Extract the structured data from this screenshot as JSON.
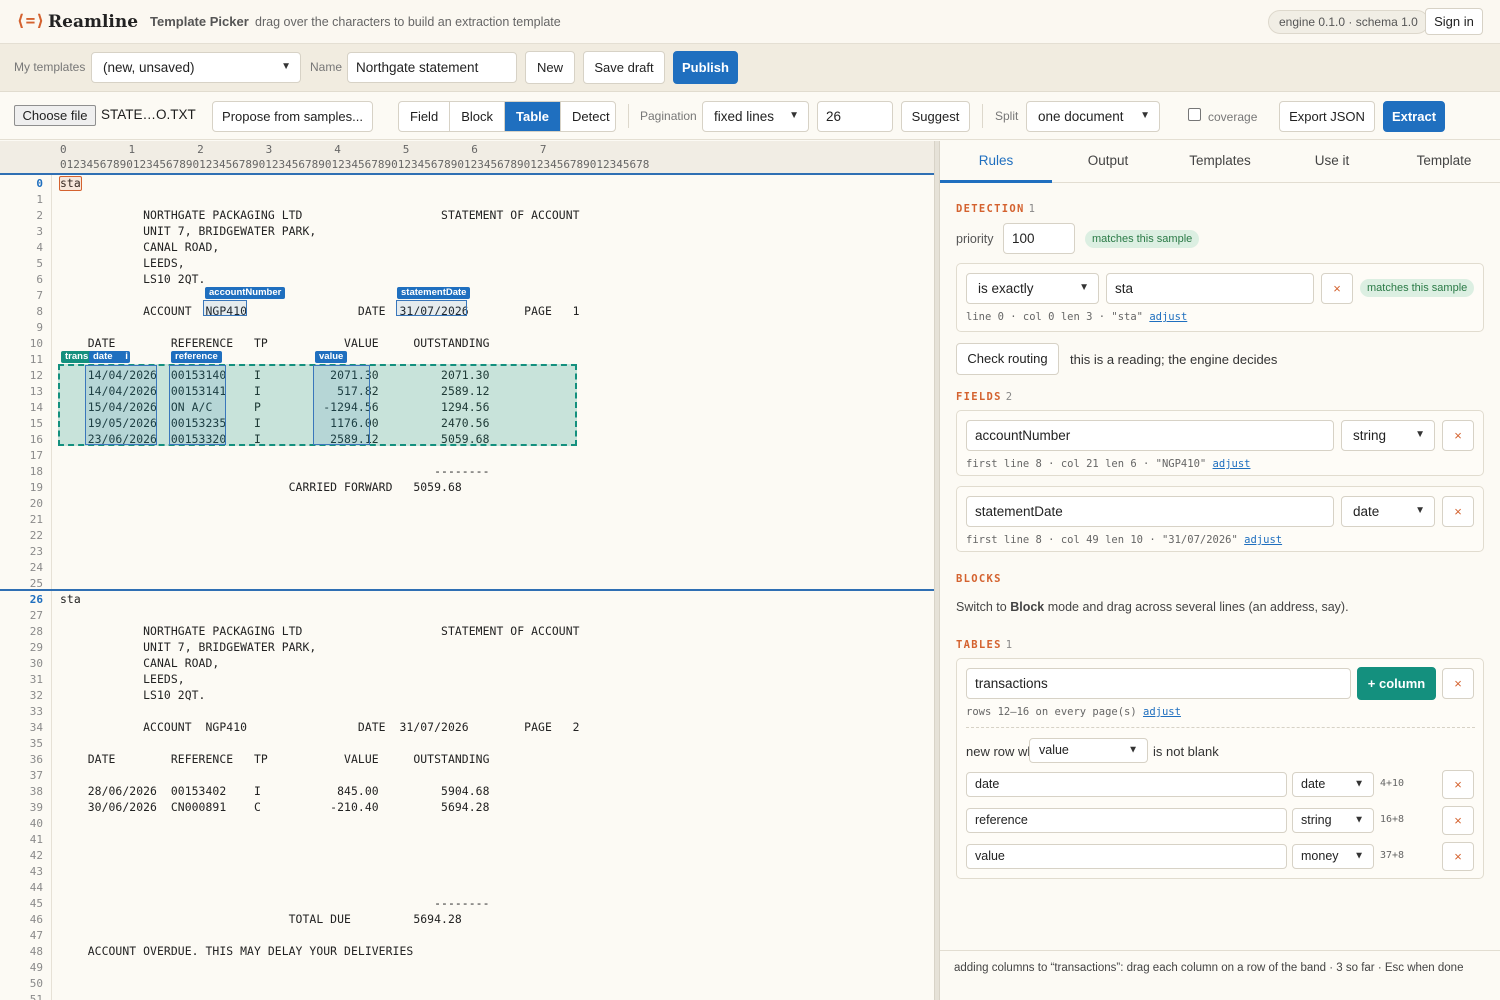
{
  "app": {
    "logo_glyph": "⟨=⟩",
    "brand": "Reamline",
    "title": "Template Picker",
    "subtitle": "drag over the characters to build an extraction template",
    "engine": "engine 0.1.0 · schema 1.0",
    "sign_in": "Sign in",
    "accent": "#1f6fbf",
    "brand_color": "#d4622f",
    "teal": "#14907e"
  },
  "templates_bar": {
    "my_templates_label": "My templates",
    "my_templates_value": "(new, unsaved)",
    "name_label": "Name",
    "name_value": "Northgate statement",
    "new_label": "New",
    "save_draft_label": "Save draft",
    "publish_label": "Publish"
  },
  "toolbar": {
    "choose_file": "Choose file",
    "file_name": "STATE…O.TXT",
    "propose": "Propose from samples...",
    "modes": [
      "Field",
      "Block",
      "Table",
      "Detect"
    ],
    "active_mode": "Table",
    "pagination_label": "Pagination",
    "pagination_value": "fixed lines",
    "pagination_lines": "26",
    "suggest": "Suggest",
    "split_label": "Split",
    "split_value": "one document",
    "coverage_label": "coverage",
    "coverage_checked": false,
    "export": "Export JSON",
    "extract": "Extract"
  },
  "ruler": {
    "tens": [
      "0",
      "1",
      "2",
      "3",
      "4",
      "5",
      "6",
      "7"
    ],
    "digits": "01234567890123456789012345678901234567890123456789012345678901234567890123456789012345678"
  },
  "document": {
    "lines": [
      "sta",
      "",
      "            NORTHGATE PACKAGING LTD                    STATEMENT OF ACCOUNT",
      "            UNIT 7, BRIDGEWATER PARK,",
      "            CANAL ROAD,",
      "            LEEDS,",
      "            LS10 2QT.",
      "",
      "            ACCOUNT  NGP410                DATE  31/07/2026        PAGE   1",
      "",
      "    DATE        REFERENCE   TP           VALUE     OUTSTANDING",
      "",
      "    14/04/2026  00153140    I          2071.30         2071.30",
      "    14/04/2026  00153141    I           517.82         2589.12",
      "    15/04/2026  ON A/C      P         -1294.56         1294.56",
      "    19/05/2026  00153235    I          1176.00         2470.56",
      "    23/06/2026  00153320    I          2589.12         5059.68",
      "",
      "                                                      --------",
      "                                 CARRIED FORWARD   5059.68",
      "",
      "",
      "",
      "",
      "",
      "",
      "sta",
      "",
      "            NORTHGATE PACKAGING LTD                    STATEMENT OF ACCOUNT",
      "            UNIT 7, BRIDGEWATER PARK,",
      "            CANAL ROAD,",
      "            LEEDS,",
      "            LS10 2QT.",
      "",
      "            ACCOUNT  NGP410                DATE  31/07/2026        PAGE   2",
      "",
      "    DATE        REFERENCE   TP           VALUE     OUTSTANDING",
      "",
      "    28/06/2026  00153402    I           845.00         5904.68",
      "    30/06/2026  CN000891    C          -210.40         5694.28",
      "",
      "",
      "",
      "",
      "",
      "                                                      --------",
      "                                 TOTAL DUE         5694.28",
      "",
      "    ACCOUNT OVERDUE. THIS MAY DELAY YOUR DELIVERIES",
      "",
      "",
      "",
      ""
    ],
    "page_starts": [
      0,
      26
    ],
    "tags": {
      "accountNumber": "accountNumber",
      "statementDate": "statementDate",
      "transactions": "trans",
      "date": "date",
      "date_suffix": "i",
      "reference": "reference",
      "value": "value"
    }
  },
  "panel": {
    "tabs": [
      "Rules",
      "Output",
      "Templates",
      "Use it",
      "Template"
    ],
    "active_tab": "Rules",
    "detection": {
      "title": "DETECTION",
      "count": "1",
      "priority_label": "priority",
      "priority_value": "100",
      "matches": "matches this sample",
      "rule_op": "is exactly",
      "rule_value": "sta",
      "rule_remove": "×",
      "rule_matches": "matches this sample",
      "rule_meta": "line 0 · col 0 len 3 · \"sta\"",
      "adjust": "adjust",
      "check_routing": "Check routing",
      "routing_note": "this is a reading; the engine decides"
    },
    "fields": {
      "title": "FIELDS",
      "count": "2",
      "items": [
        {
          "name": "accountNumber",
          "type": "string",
          "meta": "first line 8 · col 21 len 6 · \"NGP410\"",
          "adjust": "adjust",
          "remove": "×"
        },
        {
          "name": "statementDate",
          "type": "date",
          "meta": "first line 8 · col 49 len 10 · \"31/07/2026\"",
          "adjust": "adjust",
          "remove": "×"
        }
      ]
    },
    "blocks": {
      "title": "BLOCKS",
      "hint_pre": "Switch to ",
      "hint_bold": "Block",
      "hint_post": " mode and drag across several lines (an address, say)."
    },
    "tables": {
      "title": "TABLES",
      "count": "1",
      "name": "transactions",
      "add_column": "+ column",
      "remove": "×",
      "meta": "rows 12–16 on every page(s)",
      "adjust": "adjust",
      "new_row_label": "new row when",
      "new_row_col": "value",
      "new_row_cond": "is not blank",
      "columns": [
        {
          "name": "date",
          "type": "date",
          "span": "4+10",
          "remove": "×"
        },
        {
          "name": "reference",
          "type": "string",
          "span": "16+8",
          "remove": "×"
        },
        {
          "name": "value",
          "type": "money",
          "span": "37+8",
          "remove": "×"
        }
      ]
    },
    "status": "adding columns to “transactions”: drag each column on a row of the band · 3 so far · Esc when done"
  }
}
